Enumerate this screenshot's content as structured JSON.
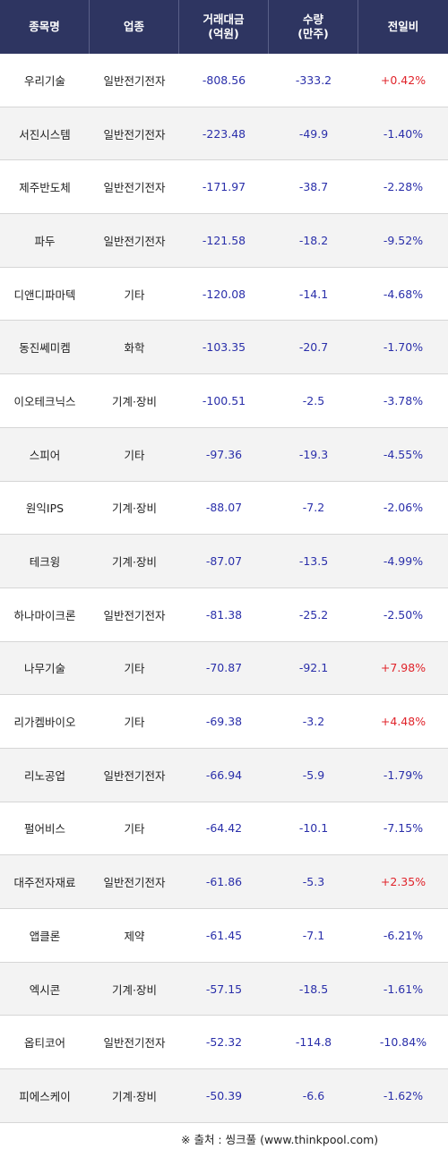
{
  "header": {
    "name": "종목명",
    "sector": "업종",
    "amount_line1": "거래대금",
    "amount_line2": "(억원)",
    "volume_line1": "수량",
    "volume_line2": "(만주)",
    "change": "전일비"
  },
  "rows": [
    {
      "name": "우리기술",
      "sector": "일반전기전자",
      "amount": "-808.56",
      "volume": "-333.2",
      "change": "+0.42%",
      "dir": "up"
    },
    {
      "name": "서진시스템",
      "sector": "일반전기전자",
      "amount": "-223.48",
      "volume": "-49.9",
      "change": "-1.40%",
      "dir": "down"
    },
    {
      "name": "제주반도체",
      "sector": "일반전기전자",
      "amount": "-171.97",
      "volume": "-38.7",
      "change": "-2.28%",
      "dir": "down"
    },
    {
      "name": "파두",
      "sector": "일반전기전자",
      "amount": "-121.58",
      "volume": "-18.2",
      "change": "-9.52%",
      "dir": "down"
    },
    {
      "name": "디앤디파마텍",
      "sector": "기타",
      "amount": "-120.08",
      "volume": "-14.1",
      "change": "-4.68%",
      "dir": "down"
    },
    {
      "name": "동진쎄미켐",
      "sector": "화학",
      "amount": "-103.35",
      "volume": "-20.7",
      "change": "-1.70%",
      "dir": "down"
    },
    {
      "name": "이오테크닉스",
      "sector": "기계·장비",
      "amount": "-100.51",
      "volume": "-2.5",
      "change": "-3.78%",
      "dir": "down"
    },
    {
      "name": "스피어",
      "sector": "기타",
      "amount": "-97.36",
      "volume": "-19.3",
      "change": "-4.55%",
      "dir": "down"
    },
    {
      "name": "원익IPS",
      "sector": "기계·장비",
      "amount": "-88.07",
      "volume": "-7.2",
      "change": "-2.06%",
      "dir": "down"
    },
    {
      "name": "테크윙",
      "sector": "기계·장비",
      "amount": "-87.07",
      "volume": "-13.5",
      "change": "-4.99%",
      "dir": "down"
    },
    {
      "name": "하나마이크론",
      "sector": "일반전기전자",
      "amount": "-81.38",
      "volume": "-25.2",
      "change": "-2.50%",
      "dir": "down"
    },
    {
      "name": "나무기술",
      "sector": "기타",
      "amount": "-70.87",
      "volume": "-92.1",
      "change": "+7.98%",
      "dir": "up"
    },
    {
      "name": "리가켐바이오",
      "sector": "기타",
      "amount": "-69.38",
      "volume": "-3.2",
      "change": "+4.48%",
      "dir": "up"
    },
    {
      "name": "리노공업",
      "sector": "일반전기전자",
      "amount": "-66.94",
      "volume": "-5.9",
      "change": "-1.79%",
      "dir": "down"
    },
    {
      "name": "펄어비스",
      "sector": "기타",
      "amount": "-64.42",
      "volume": "-10.1",
      "change": "-7.15%",
      "dir": "down"
    },
    {
      "name": "대주전자재료",
      "sector": "일반전기전자",
      "amount": "-61.86",
      "volume": "-5.3",
      "change": "+2.35%",
      "dir": "up"
    },
    {
      "name": "앱클론",
      "sector": "제약",
      "amount": "-61.45",
      "volume": "-7.1",
      "change": "-6.21%",
      "dir": "down"
    },
    {
      "name": "엑시콘",
      "sector": "기계·장비",
      "amount": "-57.15",
      "volume": "-18.5",
      "change": "-1.61%",
      "dir": "down"
    },
    {
      "name": "옵티코어",
      "sector": "일반전기전자",
      "amount": "-52.32",
      "volume": "-114.8",
      "change": "-10.84%",
      "dir": "down"
    },
    {
      "name": "피에스케이",
      "sector": "기계·장비",
      "amount": "-50.39",
      "volume": "-6.6",
      "change": "-1.62%",
      "dir": "down"
    }
  ],
  "colors": {
    "up": "#e0242b",
    "down": "#2a2faa",
    "header_bg": "#2e3561"
  },
  "footer": {
    "source": "※ 출처 : 씽크풀 (www.thinkpool.com)"
  }
}
